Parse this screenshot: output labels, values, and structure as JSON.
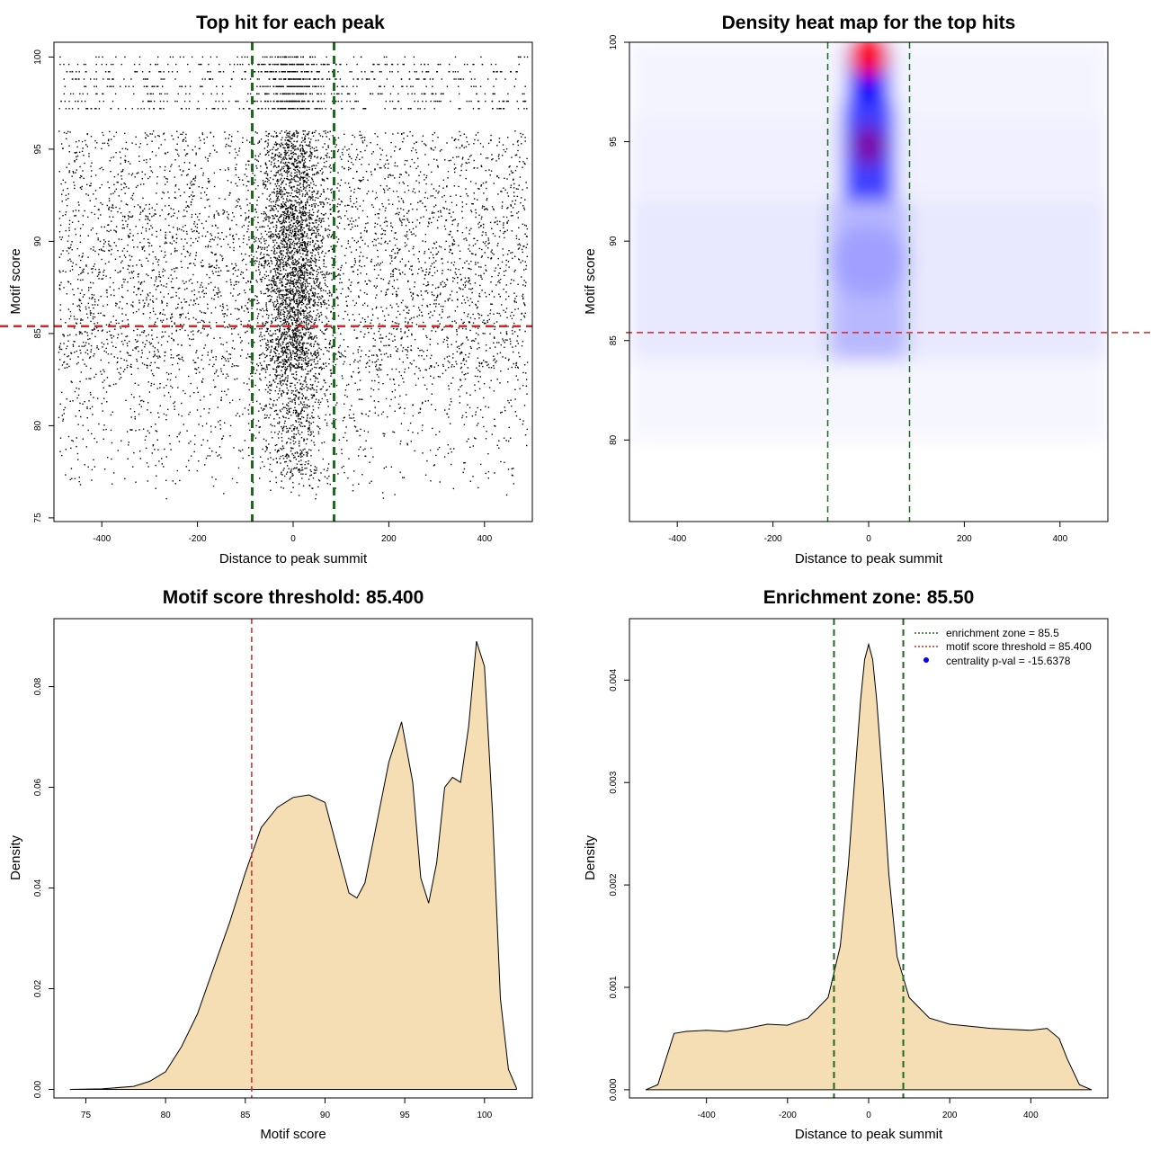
{
  "colors": {
    "threshold": "#d62728",
    "zone": "#1a6b1a",
    "fill": "#f5deb3",
    "heat_low": "#ffffff",
    "heat_mid": "#0000ff",
    "heat_high": "#ff0000",
    "centrality_dot": "#0000ff"
  },
  "chart_data": [
    {
      "id": "scatter",
      "type": "scatter",
      "title": "Top hit for each peak",
      "xlabel": "Distance to peak summit",
      "ylabel": "Motif score",
      "xlim": [
        -500,
        500
      ],
      "ylim": [
        74.8,
        100.8
      ],
      "xticks": [
        -400,
        -200,
        0,
        200,
        400
      ],
      "xtick_labels": [
        "-400",
        "-200",
        "0",
        "200",
        "400"
      ],
      "yticks": [
        75,
        80,
        85,
        90,
        95,
        100
      ],
      "ytick_labels": [
        "75",
        "80",
        "85",
        "90",
        "95",
        "100"
      ],
      "threshold_y": 85.4,
      "zone_x": [
        -85.5,
        85.5
      ],
      "point_count_estimate": 9000,
      "note": "Point density peaks near x = 0 and at high motif scores (≥ 95)."
    },
    {
      "id": "heatmap",
      "type": "heatmap",
      "title": "Density heat map for the top hits",
      "xlabel": "Distance to peak summit",
      "ylabel": "Motif score",
      "xlim": [
        -500,
        500
      ],
      "ylim": [
        75.9,
        100
      ],
      "xticks": [
        -400,
        -200,
        0,
        200,
        400
      ],
      "xtick_labels": [
        "-400",
        "-200",
        "0",
        "200",
        "400"
      ],
      "yticks": [
        80,
        85,
        90,
        95,
        100
      ],
      "ytick_labels": [
        "80",
        "85",
        "90",
        "95",
        "100"
      ],
      "threshold_y": 85.4,
      "zone_x": [
        -85.5,
        85.5
      ],
      "hotspots": [
        {
          "x": 0,
          "y": 99.3,
          "level": "max"
        },
        {
          "x": 0,
          "y": 94.8,
          "level": "high"
        },
        {
          "x": 0,
          "y": 89,
          "level": "medium"
        }
      ]
    },
    {
      "id": "score-density",
      "type": "area",
      "title": "Motif score threshold: 85.400",
      "xlabel": "Motif score",
      "ylabel": "Density",
      "xlim": [
        73.0,
        103.0
      ],
      "ylim": [
        -0.0017,
        0.0935
      ],
      "xticks": [
        75,
        80,
        85,
        90,
        95,
        100
      ],
      "xtick_labels": [
        "75",
        "80",
        "85",
        "90",
        "95",
        "100"
      ],
      "yticks": [
        0,
        0.02,
        0.04,
        0.06,
        0.08
      ],
      "ytick_labels": [
        "0.00",
        "0.02",
        "0.04",
        "0.06",
        "0.08"
      ],
      "threshold_x": 85.4,
      "x": [
        74,
        76,
        78,
        79,
        80,
        81,
        82,
        83,
        84,
        85,
        86,
        87,
        88,
        89,
        90,
        91,
        91.5,
        92,
        92.5,
        93,
        94,
        94.8,
        95.5,
        96,
        96.5,
        97,
        97.5,
        98,
        98.5,
        99,
        99.5,
        100,
        100.5,
        101,
        101.5,
        102
      ],
      "y": [
        0,
        0.0001,
        0.0006,
        0.0016,
        0.0035,
        0.0085,
        0.015,
        0.024,
        0.033,
        0.043,
        0.052,
        0.056,
        0.058,
        0.0585,
        0.057,
        0.045,
        0.039,
        0.038,
        0.041,
        0.049,
        0.065,
        0.073,
        0.061,
        0.042,
        0.037,
        0.045,
        0.06,
        0.062,
        0.061,
        0.072,
        0.089,
        0.084,
        0.055,
        0.018,
        0.004,
        0.0003
      ]
    },
    {
      "id": "distance-density",
      "type": "area",
      "title": "Enrichment zone: 85.50",
      "xlabel": "Distance to peak summit",
      "ylabel": "Density",
      "xlim": [
        -590,
        590
      ],
      "ylim": [
        -8e-05,
        0.0046
      ],
      "xticks": [
        -400,
        -200,
        0,
        200,
        400
      ],
      "xtick_labels": [
        "-400",
        "-200",
        "0",
        "200",
        "400"
      ],
      "yticks": [
        0,
        0.001,
        0.002,
        0.003,
        0.004
      ],
      "ytick_labels": [
        "0.000",
        "0.001",
        "0.002",
        "0.003",
        "0.004"
      ],
      "zone_x": [
        -85.5,
        85.5
      ],
      "x": [
        -550,
        -520,
        -500,
        -480,
        -450,
        -400,
        -350,
        -300,
        -250,
        -200,
        -150,
        -100,
        -70,
        -50,
        -35,
        -20,
        -10,
        0,
        10,
        20,
        35,
        50,
        70,
        100,
        150,
        200,
        250,
        300,
        350,
        400,
        440,
        470,
        490,
        520,
        550
      ],
      "y": [
        0,
        5e-05,
        0.0003,
        0.00055,
        0.00057,
        0.00058,
        0.00057,
        0.0006,
        0.00064,
        0.00063,
        0.0007,
        0.0009,
        0.0014,
        0.0022,
        0.003,
        0.0038,
        0.0042,
        0.00435,
        0.0042,
        0.0038,
        0.003,
        0.0021,
        0.0013,
        0.0009,
        0.0007,
        0.00064,
        0.00062,
        0.0006,
        0.00059,
        0.00058,
        0.0006,
        0.0005,
        0.0003,
        5e-05,
        0
      ]
    }
  ],
  "legend": {
    "items": [
      {
        "label": "enrichment zone = 85.5",
        "kind": "line",
        "color": "#1a6b1a"
      },
      {
        "label": "motif score threshold = 85.400",
        "kind": "line",
        "color": "#d62728"
      },
      {
        "label": "centrality p-val = -15.6378",
        "kind": "dot",
        "color": "#0000ff"
      }
    ]
  }
}
